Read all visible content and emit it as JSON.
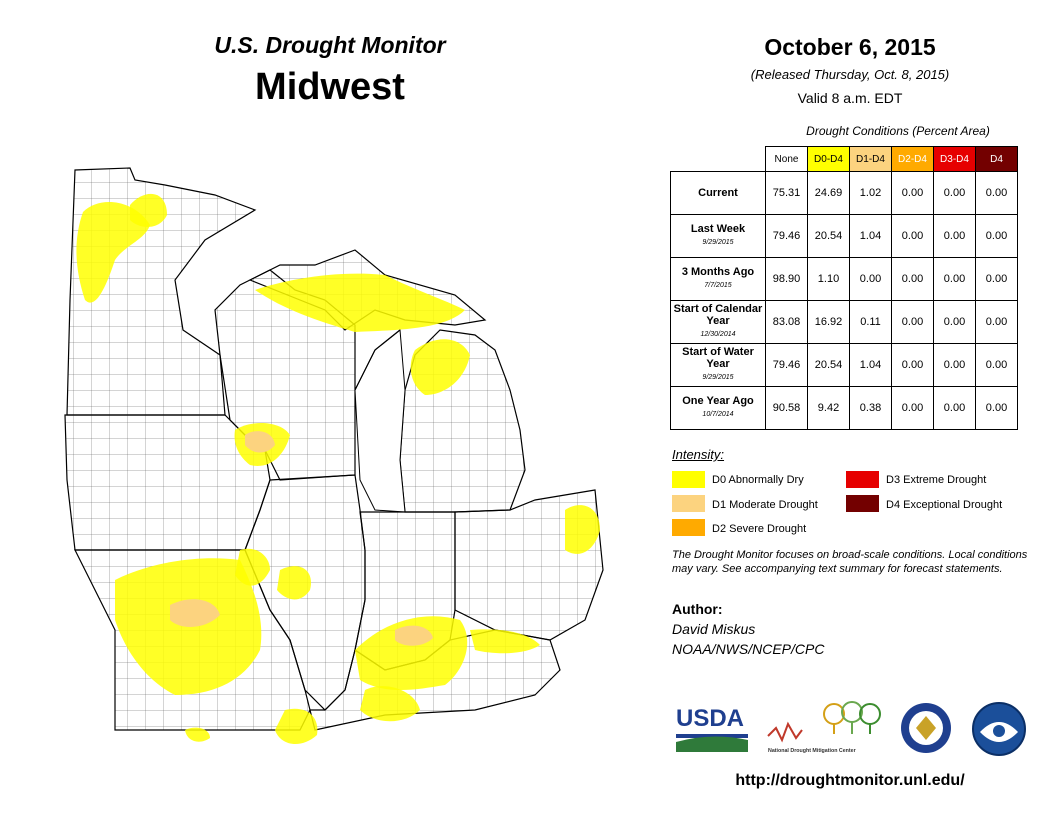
{
  "header": {
    "product": "U.S. Drought Monitor",
    "region": "Midwest",
    "date": "October 6, 2015",
    "released": "(Released Thursday, Oct. 8, 2015)",
    "valid": "Valid  8 a.m. EDT"
  },
  "conditions": {
    "title": "Drought Conditions (Percent Area)",
    "columns": [
      "None",
      "D0-D4",
      "D1-D4",
      "D2-D4",
      "D3-D4",
      "D4"
    ],
    "column_colors": [
      "#ffffff",
      "#ffff00",
      "#fcd37f",
      "#ffaa00",
      "#e60000",
      "#730000"
    ],
    "column_text_colors": [
      "#000000",
      "#000000",
      "#000000",
      "#ffffff",
      "#ffffff",
      "#ffffff"
    ],
    "rows": [
      {
        "label": "Current",
        "date": "",
        "values": [
          "75.31",
          "24.69",
          "1.02",
          "0.00",
          "0.00",
          "0.00"
        ]
      },
      {
        "label": "Last Week",
        "date": "9/29/2015",
        "values": [
          "79.46",
          "20.54",
          "1.04",
          "0.00",
          "0.00",
          "0.00"
        ]
      },
      {
        "label": "3 Months Ago",
        "date": "7/7/2015",
        "values": [
          "98.90",
          "1.10",
          "0.00",
          "0.00",
          "0.00",
          "0.00"
        ]
      },
      {
        "label": "Start of Calendar Year",
        "date": "12/30/2014",
        "values": [
          "83.08",
          "16.92",
          "0.11",
          "0.00",
          "0.00",
          "0.00"
        ]
      },
      {
        "label": "Start of Water Year",
        "date": "9/29/2015",
        "values": [
          "79.46",
          "20.54",
          "1.04",
          "0.00",
          "0.00",
          "0.00"
        ]
      },
      {
        "label": "One Year Ago",
        "date": "10/7/2014",
        "values": [
          "90.58",
          "9.42",
          "0.38",
          "0.00",
          "0.00",
          "0.00"
        ]
      }
    ]
  },
  "intensity": {
    "title": "Intensity:",
    "items": [
      {
        "label": "D0 Abnormally Dry",
        "color": "#ffff00"
      },
      {
        "label": "D1 Moderate Drought",
        "color": "#fcd37f"
      },
      {
        "label": "D2 Severe Drought",
        "color": "#ffaa00"
      },
      {
        "label": "D3 Extreme Drought",
        "color": "#e60000"
      },
      {
        "label": "D4 Exceptional Drought",
        "color": "#730000"
      }
    ]
  },
  "note": "The Drought Monitor focuses on broad-scale conditions. Local conditions may vary. See accompanying text summary for forecast statements.",
  "author": {
    "title": "Author:",
    "name": "David Miskus",
    "org": "NOAA/NWS/NCEP/CPC"
  },
  "logos": {
    "usda": "USDA",
    "ndmc": "National Drought Mitigation Center",
    "commerce_icon": "department-of-commerce-seal-icon",
    "noaa_icon": "noaa-logo-icon"
  },
  "url": "http://droughtmonitor.unl.edu/"
}
